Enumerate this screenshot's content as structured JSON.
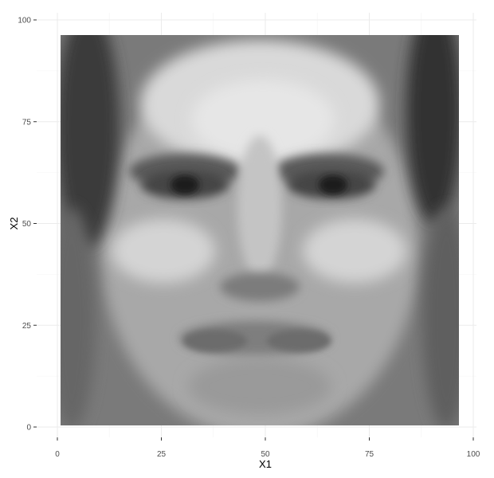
{
  "chart_data": {
    "type": "heatmap",
    "title": "",
    "xlabel": "X1",
    "ylabel": "X2",
    "xlim": [
      0,
      100
    ],
    "ylim": [
      0,
      100
    ],
    "x_ticks": [
      0,
      25,
      50,
      75,
      100
    ],
    "y_ticks": [
      0,
      25,
      50,
      75,
      100
    ],
    "x_tick_labels": [
      "0",
      "25",
      "50",
      "75",
      "100"
    ],
    "y_tick_labels": [
      "0",
      "25",
      "50",
      "75",
      "100"
    ],
    "grid": true,
    "legend": "none",
    "colormap": "grayscale",
    "tile_x_range": [
      1,
      96
    ],
    "tile_y_range": [
      1,
      96
    ],
    "description_of_values": "grayscale intensity raster depicting a mean face image"
  },
  "colors": {
    "background": "#ffffff",
    "grid": "#ebebeb",
    "tick_text": "#4d4d4d"
  }
}
